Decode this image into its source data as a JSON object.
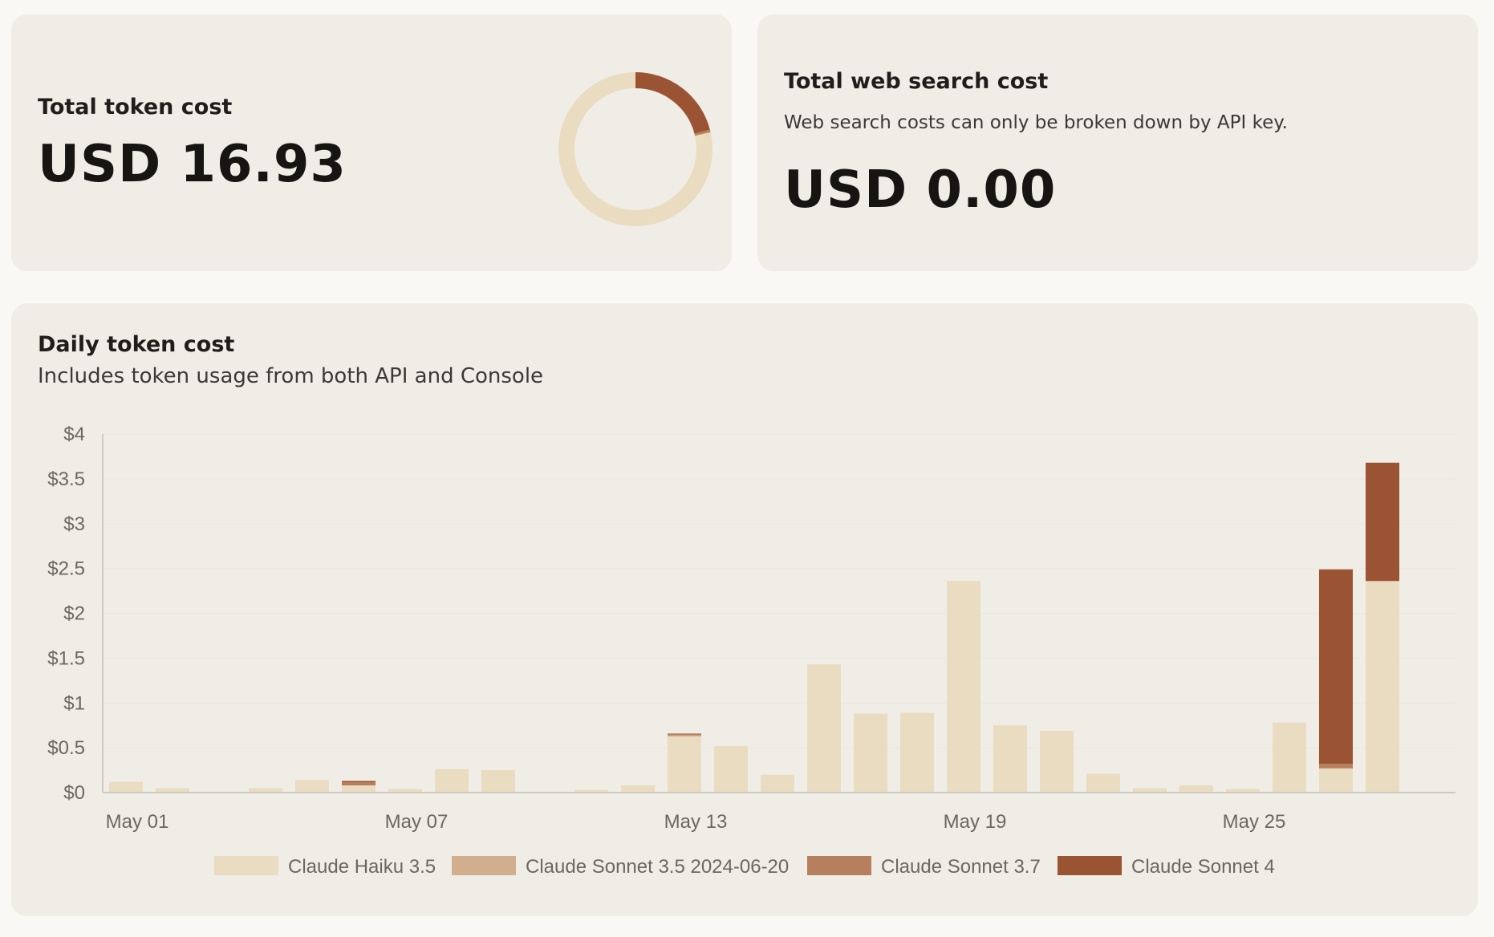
{
  "token_cost": {
    "title": "Total token cost",
    "value": "USD 16.93"
  },
  "web_search": {
    "title": "Total web search cost",
    "subtitle": "Web search costs can only be broken down by API key.",
    "value": "USD 0.00"
  },
  "daily": {
    "title": "Daily token cost",
    "subtitle": "Includes token usage from both API and Console"
  },
  "colors": {
    "haiku": "#e9dcc0",
    "sonnet35": "#d2ae8c",
    "sonnet37": "#b6805e",
    "sonnet4": "#9b5433",
    "axis": "#cfcbc3",
    "grid": "#ebe7df"
  },
  "chart_data": [
    {
      "type": "pie",
      "variant": "donut",
      "categories": [
        "Claude Haiku 3.5",
        "Claude Sonnet 3.5 2024-06-20",
        "Claude Sonnet 3.7",
        "Claude Sonnet 4"
      ],
      "values": [
        13.29,
        0.01,
        0.09,
        3.54
      ]
    },
    {
      "type": "bar",
      "stacked": true,
      "title": "Daily token cost",
      "subtitle": "Includes token usage from both API and Console",
      "categories": [
        "May 01",
        "May 02",
        "May 03",
        "May 04",
        "May 05",
        "May 06",
        "May 07",
        "May 08",
        "May 09",
        "May 10",
        "May 11",
        "May 12",
        "May 13",
        "May 14",
        "May 15",
        "May 16",
        "May 17",
        "May 18",
        "May 19",
        "May 20",
        "May 21",
        "May 22",
        "May 23",
        "May 24",
        "May 25",
        "May 26",
        "May 27",
        "May 28",
        "May 29"
      ],
      "x_tick_labels": [
        "May 01",
        "May 07",
        "May 13",
        "May 19",
        "May 25"
      ],
      "x_tick_indices": [
        0,
        6,
        12,
        18,
        24
      ],
      "y_tick_labels": [
        "$0",
        "$0.5",
        "$1",
        "$1.5",
        "$2",
        "$2.5",
        "$3",
        "$3.5",
        "$4"
      ],
      "ylim": [
        0,
        4
      ],
      "grid": true,
      "legend_position": "bottom",
      "series": [
        {
          "name": "Claude Haiku 3.5",
          "values": [
            0.12,
            0.05,
            0,
            0.05,
            0.14,
            0.08,
            0.04,
            0.26,
            0.25,
            0.01,
            0.03,
            0.08,
            0.63,
            0.52,
            0.2,
            1.43,
            0.88,
            0.89,
            2.36,
            0.75,
            0.69,
            0.21,
            0.05,
            0.08,
            0.04,
            0.78,
            0.27,
            2.36,
            0
          ]
        },
        {
          "name": "Claude Sonnet 3.5 2024-06-20",
          "values": [
            0,
            0,
            0,
            0,
            0,
            0,
            0,
            0,
            0,
            0,
            0,
            0,
            0.01,
            0,
            0,
            0,
            0,
            0,
            0,
            0,
            0,
            0,
            0,
            0,
            0,
            0,
            0,
            0,
            0
          ]
        },
        {
          "name": "Claude Sonnet 3.7",
          "values": [
            0,
            0,
            0,
            0,
            0,
            0.04,
            0,
            0,
            0,
            0,
            0,
            0,
            0.02,
            0,
            0,
            0,
            0,
            0,
            0,
            0,
            0,
            0,
            0,
            0,
            0,
            0,
            0.05,
            0,
            0
          ]
        },
        {
          "name": "Claude Sonnet 4",
          "values": [
            0,
            0,
            0,
            0,
            0,
            0.01,
            0,
            0,
            0,
            0,
            0,
            0,
            0,
            0,
            0,
            0,
            0,
            0,
            0,
            0,
            0,
            0,
            0,
            0,
            0,
            0,
            2.17,
            1.32,
            0
          ]
        }
      ]
    }
  ]
}
